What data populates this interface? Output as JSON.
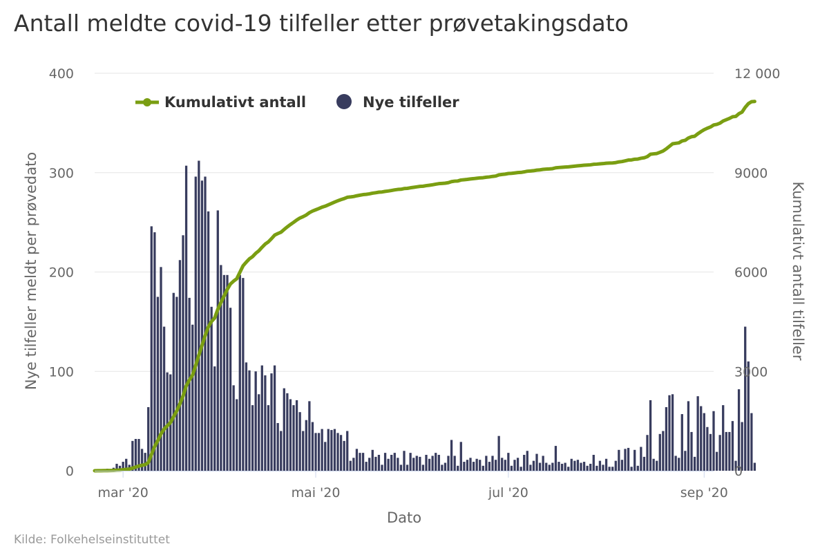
{
  "title": "Antall meldte covid-19 tilfeller etter prøvetakingsdato",
  "source": "Kilde: Folkehelseinstituttet",
  "colors": {
    "bars": "#383c5e",
    "cumulative": "#7a9e12",
    "grid": "#e6e6e6",
    "axis_text": "#666666"
  },
  "chart_data": {
    "type": "bar",
    "xlabel": "Dato",
    "ylabel_left": "Nye tilfeller meldt per prøvedato",
    "ylabel_right": "Kumulativt antall tilfeller",
    "ylim_left": [
      0,
      400
    ],
    "ylim_right": [
      0,
      12000
    ],
    "y_ticks_left": [
      "0",
      "100",
      "200",
      "300",
      "400"
    ],
    "y_ticks_right": [
      "0",
      "3000",
      "6000",
      "9000",
      "12 000"
    ],
    "x_ticks": [
      {
        "label": "mar '20",
        "date": "2020-03-01"
      },
      {
        "label": "mai '20",
        "date": "2020-05-01"
      },
      {
        "label": "jul '20",
        "date": "2020-07-01"
      },
      {
        "label": "sep '20",
        "date": "2020-09-01"
      }
    ],
    "x_range": [
      "2020-02-21",
      "2020-09-04"
    ],
    "legend": [
      "Kumulativt antall",
      "Nye tilfeller"
    ],
    "legend_position": "top-left",
    "grid": true,
    "series": [
      {
        "name": "Nye tilfeller",
        "type": "bar",
        "axis": "left",
        "start_date": "2020-02-21",
        "values": [
          1,
          1,
          1,
          1,
          2,
          1,
          3,
          7,
          5,
          9,
          12,
          6,
          30,
          32,
          32,
          22,
          18,
          64,
          246,
          240,
          175,
          205,
          145,
          99,
          97,
          179,
          175,
          212,
          237,
          307,
          174,
          147,
          296,
          312,
          292,
          296,
          261,
          165,
          105,
          262,
          207,
          197,
          197,
          164,
          86,
          72,
          197,
          194,
          109,
          101,
          66,
          100,
          77,
          106,
          96,
          66,
          98,
          106,
          48,
          40,
          83,
          78,
          72,
          66,
          71,
          59,
          40,
          51,
          70,
          49,
          38,
          38,
          42,
          29,
          42,
          41,
          42,
          38,
          36,
          30,
          40,
          10,
          13,
          22,
          18,
          18,
          9,
          13,
          21,
          14,
          16,
          6,
          18,
          12,
          16,
          18,
          13,
          6,
          20,
          6,
          18,
          13,
          15,
          14,
          6,
          16,
          12,
          15,
          18,
          16,
          6,
          8,
          15,
          31,
          15,
          5,
          29,
          9,
          11,
          13,
          9,
          12,
          11,
          5,
          15,
          9,
          15,
          11,
          35,
          13,
          11,
          18,
          5,
          11,
          13,
          4,
          16,
          20,
          6,
          10,
          17,
          8,
          15,
          8,
          6,
          8,
          25,
          9,
          7,
          8,
          4,
          12,
          10,
          11,
          8,
          9,
          5,
          7,
          16,
          5,
          10,
          6,
          12,
          4,
          4,
          10,
          21,
          11,
          22,
          23,
          4,
          21,
          5,
          24,
          14,
          36,
          71,
          12,
          10,
          37,
          40,
          64,
          76,
          77,
          15,
          13,
          57,
          20,
          70,
          39,
          14,
          75,
          65,
          58,
          44,
          37,
          60,
          19,
          36,
          66,
          39,
          39,
          50,
          10,
          82,
          49,
          145,
          110,
          58,
          8
        ]
      },
      {
        "name": "Kumulativt antall",
        "type": "line",
        "axis": "right",
        "note": "cumulative sum of Nye tilfeller"
      }
    ]
  }
}
